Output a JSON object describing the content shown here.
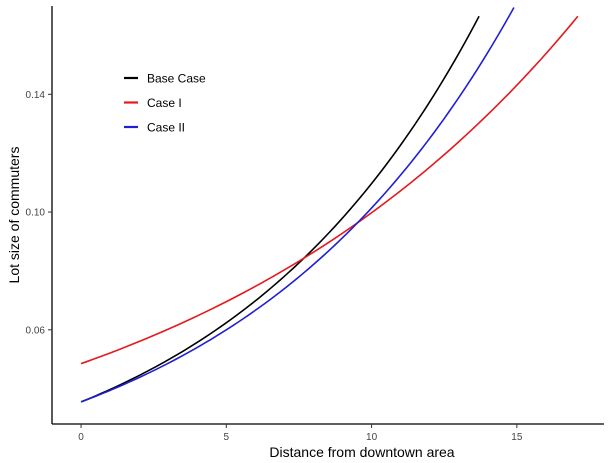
{
  "chart_data": {
    "type": "line",
    "title": "",
    "xlabel": "Distance from downtown area",
    "ylabel": "Lot size of commuters",
    "xlim": [
      -1.0,
      18.0
    ],
    "ylim": [
      0.028,
      0.17
    ],
    "x_ticks": [
      0,
      5,
      10,
      15
    ],
    "y_ticks": [
      0.06,
      0.1,
      0.14
    ],
    "y_tick_labels": [
      "0.06",
      "0.10",
      "0.14"
    ],
    "grid": false,
    "legend_position": "top-left",
    "series": [
      {
        "name": "Base Case",
        "color": "#000000",
        "x0": 0,
        "x1": 13.7,
        "y0": 0.0355,
        "y1": 0.1665
      },
      {
        "name": "Case I",
        "color": "#e41a1c",
        "x0": 0,
        "x1": 17.1,
        "y0": 0.0485,
        "y1": 0.1665
      },
      {
        "name": "Case II",
        "color": "#1f1fd6",
        "x0": 0,
        "x1": 14.9,
        "y0": 0.0355,
        "y1": 0.1695
      }
    ]
  }
}
